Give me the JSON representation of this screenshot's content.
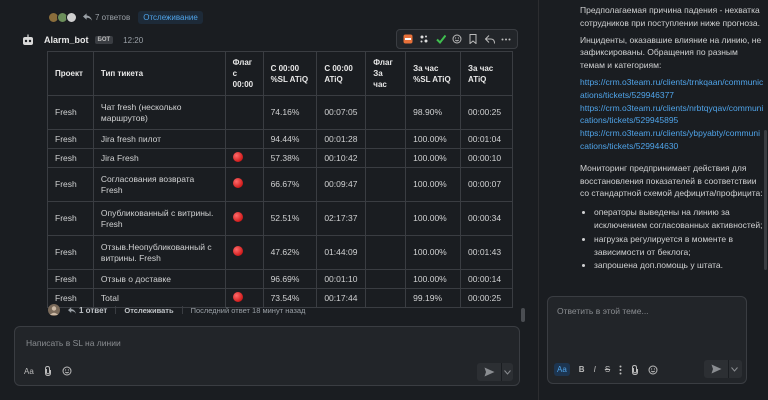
{
  "thread_top": {
    "replies_label": "7 ответов",
    "follow_label": "Отслеживание"
  },
  "message": {
    "author": "Alarm_bot",
    "badge": "БОТ",
    "time": "12:20"
  },
  "table": {
    "headers": [
      "Проект",
      "Тип тикета",
      "Флаг с 00:00",
      "С 00:00 %SL ATiQ",
      "С 00:00 ATiQ",
      "Флаг За час",
      "За час %SL ATiQ",
      "За час ATiQ"
    ],
    "rows": [
      {
        "project": "Fresh",
        "type": "Чат fresh (несколько маршрутов)",
        "flag_day": false,
        "sl_day": "74.16%",
        "atiq_day": "00:07:05",
        "flag_hour": false,
        "sl_hour": "98.90%",
        "atiq_hour": "00:00:25"
      },
      {
        "project": "Fresh",
        "type": "Jira fresh пилот",
        "flag_day": false,
        "sl_day": "94.44%",
        "atiq_day": "00:01:28",
        "flag_hour": false,
        "sl_hour": "100.00%",
        "atiq_hour": "00:01:04"
      },
      {
        "project": "Fresh",
        "type": "Jira Fresh",
        "flag_day": true,
        "sl_day": "57.38%",
        "atiq_day": "00:10:42",
        "flag_hour": false,
        "sl_hour": "100.00%",
        "atiq_hour": "00:00:10"
      },
      {
        "project": "Fresh",
        "type": "Согласования возврата Fresh",
        "flag_day": true,
        "sl_day": "66.67%",
        "atiq_day": "00:09:47",
        "flag_hour": false,
        "sl_hour": "100.00%",
        "atiq_hour": "00:00:07"
      },
      {
        "project": "Fresh",
        "type": "Опубликованный с витрины. Fresh",
        "flag_day": true,
        "sl_day": "52.51%",
        "atiq_day": "02:17:37",
        "flag_hour": false,
        "sl_hour": "100.00%",
        "atiq_hour": "00:00:34"
      },
      {
        "project": "Fresh",
        "type": "Отзыв.Неопубликованный с витрины. Fresh",
        "flag_day": true,
        "sl_day": "47.62%",
        "atiq_day": "01:44:09",
        "flag_hour": false,
        "sl_hour": "100.00%",
        "atiq_hour": "00:01:43"
      },
      {
        "project": "Fresh",
        "type": "Отзыв о доставке",
        "flag_day": false,
        "sl_day": "96.69%",
        "atiq_day": "00:01:10",
        "flag_hour": false,
        "sl_hour": "100.00%",
        "atiq_hour": "00:00:14"
      },
      {
        "project": "Fresh",
        "type": "Total",
        "flag_day": true,
        "sl_day": "73.54%",
        "atiq_day": "00:17:44",
        "flag_hour": false,
        "sl_hour": "99.19%",
        "atiq_hour": "00:00:25"
      }
    ]
  },
  "thread_bottom": {
    "replies_label": "1 ответ",
    "follow_label": "Отслеживать",
    "last_reply": "Последний ответ 18 минут назад"
  },
  "composer": {
    "placeholder": "Написать в SL на линии",
    "format_label": "Aa"
  },
  "side": {
    "p1": "Предполагаемая причина падения - нехватка сотрудников при поступлении ниже прогноза.",
    "p2": "Инциденты, оказавшие влияние на линию, не зафиксированы. Обращения по разным темам и категориям:",
    "links": [
      "https://crm.o3team.ru/clients/trnkqaan/communications/tickets/529946377",
      "https://crm.o3team.ru/clients/nrbtqyqav/communications/tickets/529945895",
      "https://crm.o3team.ru/clients/ybpyabty/communications/tickets/529944630"
    ],
    "p3": "Мониторинг предпринимает действия для восстановления показателей в соответствии со стандартной схемой дефицита/профицита:",
    "bullets": [
      "операторы выведены на линию за исключением согласованных активностей;",
      "нагрузка регулируется в моменте в зависимости от беклога;",
      "запрошена доп.помощь у штата."
    ],
    "reply_placeholder": "Ответить в этой теме...",
    "format_label": "Aa",
    "bold_label": "B",
    "italic_label": "I",
    "strike_label": "S"
  },
  "colors": {
    "accent": "#4fa3e8",
    "flag_red": "#d01b1b",
    "bg": "#1a1d21"
  }
}
